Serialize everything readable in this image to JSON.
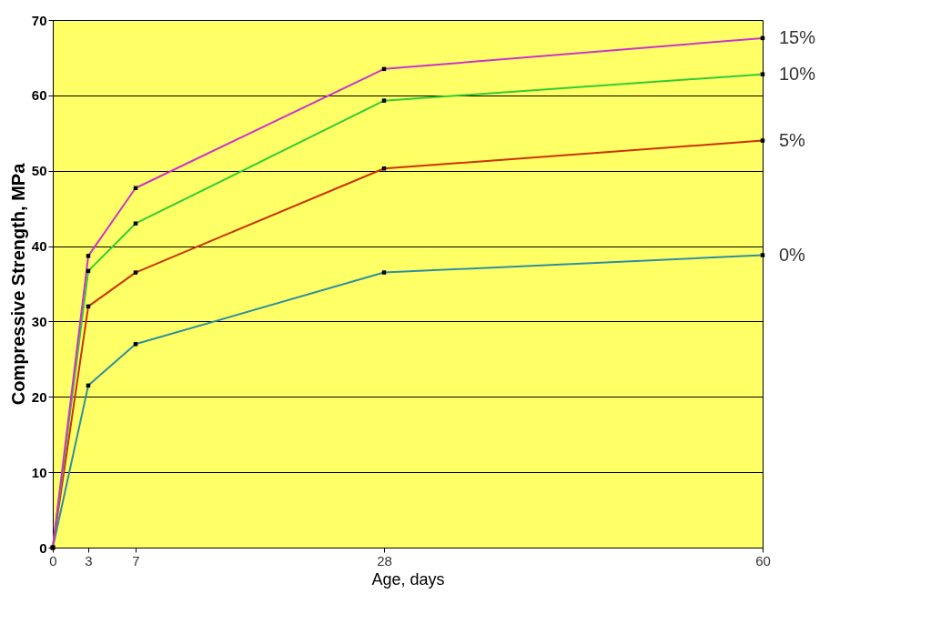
{
  "chart_data": {
    "type": "line",
    "xlabel": "Age, days",
    "ylabel": "Compressive Strength, MPa",
    "x": [
      0,
      3,
      7,
      28,
      60
    ],
    "xlim": [
      0,
      60
    ],
    "xticks": [
      0,
      3,
      7,
      28,
      60
    ],
    "ylim": [
      0,
      70
    ],
    "yticks": [
      0,
      10,
      20,
      30,
      40,
      50,
      60,
      70
    ],
    "grid": "y",
    "legend": false,
    "marker": "square",
    "line_style": "solid",
    "series": [
      {
        "name": "0%",
        "color": "#2f8f9d",
        "values": [
          0,
          21.5,
          27,
          36.5,
          38.8
        ]
      },
      {
        "name": "5%",
        "color": "#cc3300",
        "values": [
          0,
          32,
          36.5,
          50.3,
          54
        ]
      },
      {
        "name": "10%",
        "color": "#33cc33",
        "values": [
          0,
          36.7,
          43,
          59.3,
          62.8
        ]
      },
      {
        "name": "15%",
        "color": "#cc33cc",
        "values": [
          0,
          38.7,
          47.7,
          63.5,
          67.6
        ]
      }
    ]
  }
}
